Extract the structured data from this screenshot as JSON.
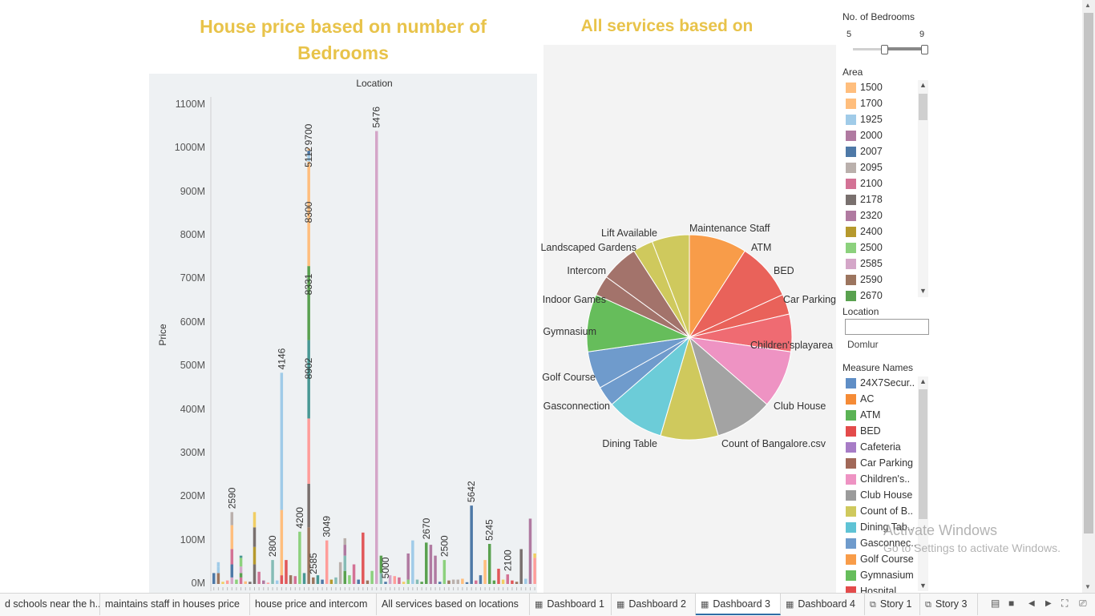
{
  "dashboard": {
    "bar_title_line1": "House price based on number of",
    "bar_title_line2": "Bedrooms",
    "pie_title": "All services based on locations"
  },
  "chart_data": [
    {
      "type": "bar",
      "stacked": true,
      "title": "House price based on number of Bedrooms",
      "column_header": "Location",
      "ylabel": "Price",
      "ylim": [
        0,
        1100
      ],
      "y_ticks": [
        "0M",
        "100M",
        "200M",
        "300M",
        "400M",
        "500M",
        "600M",
        "700M",
        "800M",
        "900M",
        "1000M",
        "1100M"
      ],
      "bars": [
        {
          "segments": [
            [
              25,
              "#4e79a7"
            ]
          ]
        },
        {
          "segments": [
            [
              25,
              "#9c755f"
            ],
            [
              15,
              "#a0cbe8"
            ],
            [
              10,
              "#a0cbe8"
            ]
          ]
        },
        {
          "segments": [
            [
              5,
              "#f1ce63"
            ]
          ]
        },
        {
          "segments": [
            [
              8,
              "#ff9d9a"
            ]
          ]
        },
        {
          "segments": [
            [
              15,
              "#d4a6c8"
            ],
            [
              30,
              "#4e79a7"
            ],
            [
              35,
              "#d37295"
            ],
            [
              55,
              "#ffbe7d"
            ],
            [
              30,
              "#bab0ac"
            ]
          ],
          "label": "2590"
        },
        {
          "segments": [
            [
              10,
              "#8cd17d"
            ]
          ]
        },
        {
          "segments": [
            [
              15,
              "#d37295"
            ],
            [
              10,
              "#59a14f"
            ],
            [
              15,
              "#d4a6c8"
            ],
            [
              20,
              "#8cd17d"
            ],
            [
              5,
              "#499894"
            ]
          ]
        },
        {
          "segments": [
            [
              6,
              "#ffbe7d"
            ]
          ]
        },
        {
          "segments": [
            [
              5,
              "#79706e"
            ]
          ]
        },
        {
          "segments": [
            [
              45,
              "#79706e"
            ],
            [
              40,
              "#b6992d"
            ],
            [
              45,
              "#79706e"
            ],
            [
              35,
              "#f1ce63"
            ]
          ]
        },
        {
          "segments": [
            [
              28,
              "#d37295"
            ]
          ]
        },
        {
          "segments": [
            [
              8,
              "#b07aa1"
            ]
          ]
        },
        {
          "segments": [
            [
              3,
              "#ff9d9a"
            ]
          ]
        },
        {
          "segments": [
            [
              55,
              "#86bcb6"
            ]
          ],
          "label": "2800"
        },
        {
          "segments": [
            [
              8,
              "#a0cbe8"
            ]
          ]
        },
        {
          "segments": [
            [
              20,
              "#e15759"
            ],
            [
              60,
              "#ffbe7d"
            ],
            [
              90,
              "#ffbe7d"
            ],
            [
              315,
              "#a0cbe8"
            ]
          ],
          "label": "4146"
        },
        {
          "segments": [
            [
              55,
              "#e15759"
            ]
          ]
        },
        {
          "segments": [
            [
              20,
              "#9c755f"
            ]
          ]
        },
        {
          "segments": [
            [
              18,
              "#d37295"
            ]
          ]
        },
        {
          "segments": [
            [
              120,
              "#8cd17d"
            ]
          ],
          "label": "4200"
        },
        {
          "segments": [
            [
              25,
              "#499894"
            ]
          ]
        },
        {
          "segments": [
            [
              130,
              "#9c755f"
            ],
            [
              100,
              "#79706e"
            ],
            [
              150,
              "#ff9d9a"
            ],
            [
              180,
              "#499894"
            ],
            [
              170,
              "#59a14f"
            ],
            [
              110,
              "#ffbe7d"
            ],
            [
              130,
              "#ffbe7d"
            ],
            [
              15,
              "#a0cbe8"
            ],
            [
              10,
              "#4e79a7"
            ],
            [
              5,
              "#ffbe7d"
            ]
          ],
          "label": "9700",
          "mid_labels": [
            "8902",
            "8331",
            "8300",
            "5112"
          ]
        },
        {
          "segments": [
            [
              15,
              "#9c755f"
            ]
          ],
          "label": "2585"
        },
        {
          "segments": [
            [
              20,
              "#499894"
            ]
          ]
        },
        {
          "segments": [
            [
              10,
              "#4e79a7"
            ]
          ]
        },
        {
          "segments": [
            [
              100,
              "#ff9d9a"
            ]
          ],
          "label": "3049"
        },
        {
          "segments": [
            [
              10,
              "#b6992d"
            ]
          ]
        },
        {
          "segments": [
            [
              15,
              "#86bcb6"
            ]
          ]
        },
        {
          "segments": [
            [
              50,
              "#bab0ac"
            ]
          ]
        },
        {
          "segments": [
            [
              30,
              "#59a14f"
            ],
            [
              35,
              "#86bcb6"
            ],
            [
              25,
              "#b07aa1"
            ],
            [
              15,
              "#bab0ac"
            ]
          ]
        },
        {
          "segments": [
            [
              20,
              "#8cd17d"
            ]
          ]
        },
        {
          "segments": [
            [
              45,
              "#d37295"
            ]
          ]
        },
        {
          "segments": [
            [
              10,
              "#4e79a7"
            ]
          ]
        },
        {
          "segments": [
            [
              118,
              "#e15759"
            ]
          ]
        },
        {
          "segments": [
            [
              8,
              "#9c755f"
            ]
          ]
        },
        {
          "segments": [
            [
              30,
              "#8cd17d"
            ]
          ]
        },
        {
          "segments": [
            [
              1040,
              "#d4a6c8"
            ]
          ],
          "label": "5476"
        },
        {
          "segments": [
            [
              25,
              "#86bcb6"
            ],
            [
              40,
              "#59a14f"
            ]
          ]
        },
        {
          "segments": [
            [
              5,
              "#4e79a7"
            ]
          ],
          "label": "5000"
        },
        {
          "segments": [
            [
              20,
              "#d4a6c8"
            ]
          ]
        },
        {
          "segments": [
            [
              18,
              "#ff9d9a"
            ]
          ]
        },
        {
          "segments": [
            [
              15,
              "#d37295"
            ]
          ]
        },
        {
          "segments": [
            [
              5,
              "#f1ce63"
            ]
          ]
        },
        {
          "segments": [
            [
              10,
              "#8cd17d"
            ],
            [
              60,
              "#b07aa1"
            ]
          ]
        },
        {
          "segments": [
            [
              100,
              "#a0cbe8"
            ]
          ]
        },
        {
          "segments": [
            [
              10,
              "#86bcb6"
            ]
          ]
        },
        {
          "segments": [
            [
              5,
              "#59a14f"
            ]
          ]
        },
        {
          "segments": [
            [
              95,
              "#59a14f"
            ]
          ],
          "label": "2670"
        },
        {
          "segments": [
            [
              90,
              "#b07aa1"
            ]
          ]
        },
        {
          "segments": [
            [
              65,
              "#b07aa1"
            ]
          ]
        },
        {
          "segments": [
            [
              5,
              "#4e79a7"
            ]
          ]
        },
        {
          "segments": [
            [
              55,
              "#8cd17d"
            ]
          ],
          "label": "2500"
        },
        {
          "segments": [
            [
              8,
              "#9c755f"
            ]
          ]
        },
        {
          "segments": [
            [
              10,
              "#bab0ac"
            ]
          ]
        },
        {
          "segments": [
            [
              10,
              "#bab0ac"
            ]
          ]
        },
        {
          "segments": [
            [
              12,
              "#ffbe7d"
            ]
          ]
        },
        {
          "segments": [
            [
              4,
              "#4e79a7"
            ]
          ]
        },
        {
          "segments": [
            [
              180,
              "#4e79a7"
            ]
          ],
          "label": "5642"
        },
        {
          "segments": [
            [
              8,
              "#d37295"
            ]
          ]
        },
        {
          "segments": [
            [
              20,
              "#4e79a7"
            ]
          ]
        },
        {
          "segments": [
            [
              55,
              "#ffbe7d"
            ]
          ]
        },
        {
          "segments": [
            [
              92,
              "#59a14f"
            ]
          ],
          "label": "5245"
        },
        {
          "segments": [
            [
              8,
              "#59a14f"
            ]
          ]
        },
        {
          "segments": [
            [
              35,
              "#e15759"
            ]
          ]
        },
        {
          "segments": [
            [
              10,
              "#f1ce63"
            ]
          ]
        },
        {
          "segments": [
            [
              22,
              "#d37295"
            ]
          ],
          "label": "2100"
        },
        {
          "segments": [
            [
              8,
              "#e15759"
            ]
          ]
        },
        {
          "segments": [
            [
              5,
              "#9c755f"
            ]
          ]
        },
        {
          "segments": [
            [
              80,
              "#79706e"
            ]
          ]
        },
        {
          "segments": [
            [
              12,
              "#a0cbe8"
            ]
          ]
        },
        {
          "segments": [
            [
              150,
              "#b07aa1"
            ]
          ]
        },
        {
          "segments": [
            [
              60,
              "#ff9d9a"
            ],
            [
              10,
              "#f1ce63"
            ]
          ]
        }
      ]
    },
    {
      "type": "pie",
      "title": "All services based on locations",
      "slices": [
        {
          "label": "Maintenance Staff",
          "value": 1,
          "color": "#f89c49"
        },
        {
          "label": "ATM",
          "value": 1,
          "color": "#e9625a"
        },
        {
          "label": "BED",
          "value": 0.35,
          "color": "#e9625a"
        },
        {
          "label": "Car Parking",
          "value": 0.65,
          "color": "#ef6b72"
        },
        {
          "label": "Children'splayarea",
          "value": 1,
          "color": "#ee93c3"
        },
        {
          "label": "Club House",
          "value": 1,
          "color": "#a3a3a3"
        },
        {
          "label": "Count of Bangalore.csv",
          "value": 1,
          "color": "#cfc95d"
        },
        {
          "label": "Dining Table",
          "value": 1,
          "color": "#6cccd8"
        },
        {
          "label": "Gasconnection",
          "value": 0.35,
          "color": "#6f9bcc"
        },
        {
          "label": "Golf Course",
          "value": 0.65,
          "color": "#6f9bcc"
        },
        {
          "label": "Gymnasium",
          "value": 1,
          "color": "#66bd5b"
        },
        {
          "label": "Indoor Games",
          "value": 0.35,
          "color": "#a3736b"
        },
        {
          "label": "Intercom",
          "value": 0.65,
          "color": "#a3736b"
        },
        {
          "label": "Landscaped Gardens",
          "value": 0.35,
          "color": "#cfc95d"
        },
        {
          "label": "Lift Available",
          "value": 0.65,
          "color": "#cfc95d"
        }
      ]
    }
  ],
  "filters": {
    "bedrooms": {
      "title": "No. of Bedrooms",
      "min": "5",
      "max": "9"
    },
    "area": {
      "title": "Area",
      "items": [
        {
          "label": "1500",
          "color": "#ffbe7d"
        },
        {
          "label": "1700",
          "color": "#ffbe7d"
        },
        {
          "label": "1925",
          "color": "#a0cbe8"
        },
        {
          "label": "2000",
          "color": "#b07aa1"
        },
        {
          "label": "2007",
          "color": "#4e79a7"
        },
        {
          "label": "2095",
          "color": "#bab0ac"
        },
        {
          "label": "2100",
          "color": "#d37295"
        },
        {
          "label": "2178",
          "color": "#79706e"
        },
        {
          "label": "2320",
          "color": "#b07aa1"
        },
        {
          "label": "2400",
          "color": "#b6992d"
        },
        {
          "label": "2500",
          "color": "#8cd17d"
        },
        {
          "label": "2585",
          "color": "#d4a6c8"
        },
        {
          "label": "2590",
          "color": "#9c755f"
        },
        {
          "label": "2670",
          "color": "#59a14f"
        }
      ]
    },
    "location": {
      "title": "Location",
      "value": "Domlur"
    },
    "measure_names": {
      "title": "Measure Names",
      "items": [
        {
          "label": "24X7Secur..",
          "color": "#5f8ec6"
        },
        {
          "label": "AC",
          "color": "#f58b36"
        },
        {
          "label": "ATM",
          "color": "#5bb355"
        },
        {
          "label": "BED",
          "color": "#e34b4b"
        },
        {
          "label": "Cafeteria",
          "color": "#a77cc6"
        },
        {
          "label": "Car Parking",
          "color": "#a16858"
        },
        {
          "label": "Children's..",
          "color": "#ee93c3"
        },
        {
          "label": "Club House",
          "color": "#9b9b9b"
        },
        {
          "label": "Count of B..",
          "color": "#cfc95d"
        },
        {
          "label": "Dining Tab..",
          "color": "#5fc3d5"
        },
        {
          "label": "Gasconnec..",
          "color": "#6f9bcc"
        },
        {
          "label": "Golf Course",
          "color": "#f89c49"
        },
        {
          "label": "Gymnasium",
          "color": "#66bd5b"
        },
        {
          "label": "Hospital",
          "color": "#e34b4b"
        }
      ]
    }
  },
  "watermark": {
    "line1": "Activate Windows",
    "line2": "Go to Settings to activate Windows."
  },
  "tabs": [
    {
      "label": "d schools near the h...",
      "icon": ""
    },
    {
      "label": "maintains staff in houses price",
      "icon": ""
    },
    {
      "label": "house price and intercom",
      "icon": ""
    },
    {
      "label": "All services based on locations",
      "icon": ""
    },
    {
      "label": "Dashboard 1",
      "icon": "▦"
    },
    {
      "label": "Dashboard 2",
      "icon": "▦"
    },
    {
      "label": "Dashboard 3",
      "icon": "▦",
      "active": true
    },
    {
      "label": "Dashboard 4",
      "icon": "▦"
    },
    {
      "label": "Story 1",
      "icon": "⧉"
    },
    {
      "label": "Story 3",
      "icon": "⧉"
    }
  ],
  "icons": {
    "grid_view": "grid-view-icon",
    "filmstrip": "filmstrip-icon",
    "prev": "prev-icon",
    "next": "next-icon",
    "fullscreen": "fullscreen-icon",
    "present": "present-icon"
  }
}
